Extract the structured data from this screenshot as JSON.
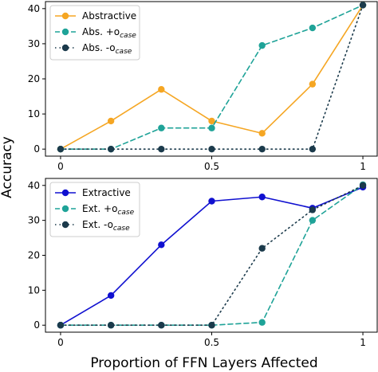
{
  "shared": {
    "ylabel": "Accuracy",
    "xlabel": "Proportion of FFN Layers Affected"
  },
  "chart_data": [
    {
      "type": "line",
      "x": [
        0,
        0.1667,
        0.3333,
        0.5,
        0.6667,
        0.8333,
        1.0
      ],
      "xlim": [
        -0.05,
        1.05
      ],
      "ylim": [
        -2,
        42
      ],
      "xticks": [
        0,
        0.5,
        1
      ],
      "xtick_labels": [
        "0",
        "0.5",
        "1"
      ],
      "yticks": [
        0,
        10,
        20,
        30,
        40
      ],
      "show_xtick_labels": true,
      "grid": false,
      "legend_position": "top-left",
      "series": [
        {
          "name": "Abstractive",
          "name_sub": "",
          "color": "#f5a623",
          "dash": "solid",
          "values": [
            0,
            8,
            17,
            8,
            4.5,
            18.5,
            41
          ]
        },
        {
          "name": "Abs. +o",
          "name_sub": "case",
          "color": "#1fa398",
          "dash": "dashed",
          "values": [
            0,
            0,
            6,
            6,
            29.5,
            34.5,
            41
          ]
        },
        {
          "name": "Abs. -o",
          "name_sub": "case",
          "color": "#1b3a4b",
          "dash": "dotted",
          "values": [
            0,
            0,
            0,
            0,
            0,
            0,
            41
          ]
        }
      ]
    },
    {
      "type": "line",
      "x": [
        0,
        0.1667,
        0.3333,
        0.5,
        0.6667,
        0.8333,
        1.0
      ],
      "xlim": [
        -0.05,
        1.05
      ],
      "ylim": [
        -2,
        42
      ],
      "xticks": [
        0,
        0.5,
        1
      ],
      "xtick_labels": [
        "0",
        "0.5",
        "1"
      ],
      "yticks": [
        0,
        10,
        20,
        30,
        40
      ],
      "show_xtick_labels": true,
      "grid": false,
      "legend_position": "top-left",
      "series": [
        {
          "name": "Extractive",
          "name_sub": "",
          "color": "#1010d0",
          "dash": "solid",
          "values": [
            0,
            8.5,
            23,
            35.5,
            36.7,
            33.5,
            39.5
          ]
        },
        {
          "name": "Ext. +o",
          "name_sub": "case",
          "color": "#1fa398",
          "dash": "dashed",
          "values": [
            0,
            0,
            0,
            0,
            0.8,
            30,
            40.2
          ]
        },
        {
          "name": "Ext. -o",
          "name_sub": "case",
          "color": "#1b3a4b",
          "dash": "dotted",
          "values": [
            0,
            0,
            0,
            0,
            22,
            33,
            40
          ]
        }
      ]
    }
  ]
}
